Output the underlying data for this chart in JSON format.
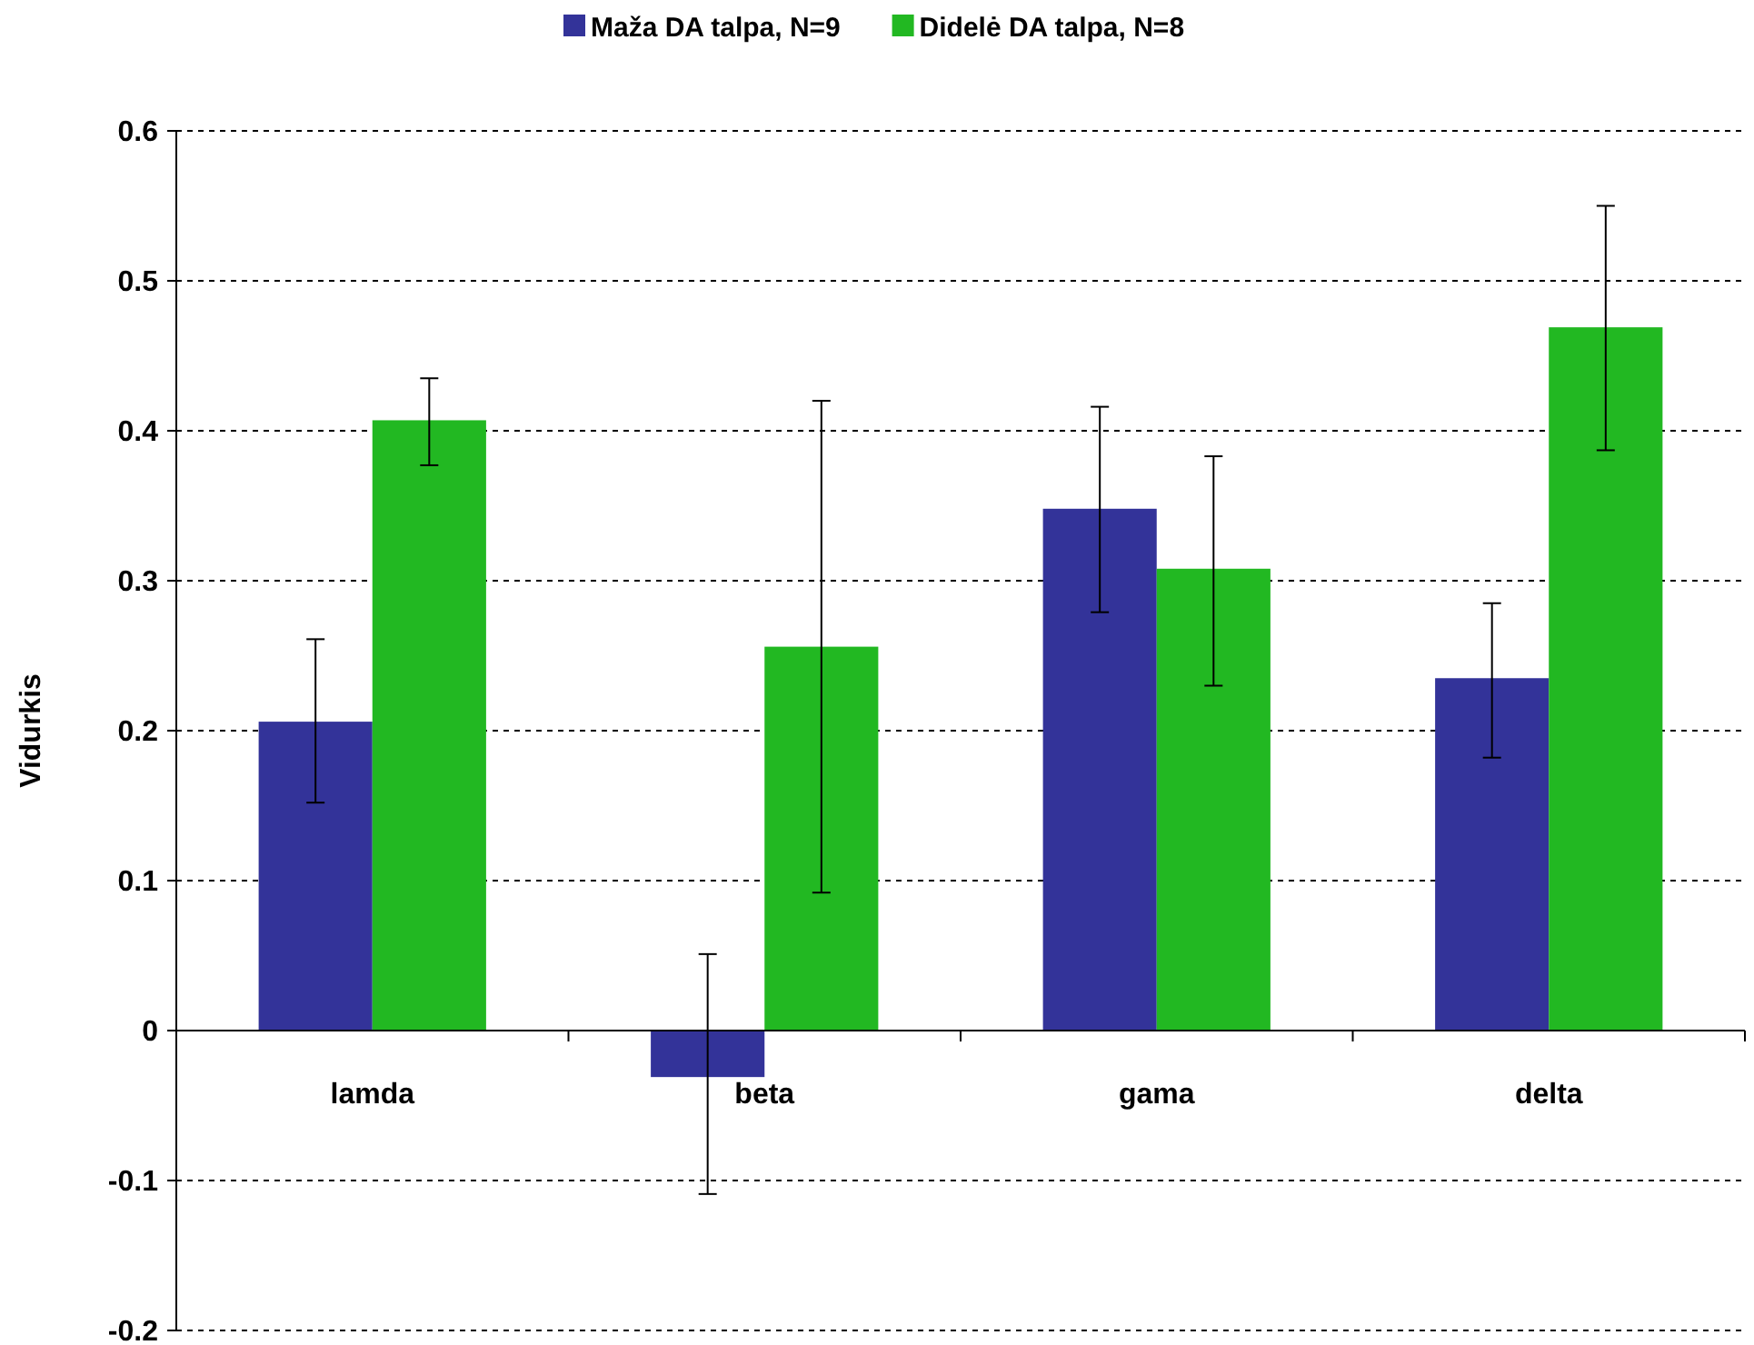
{
  "chart_data": {
    "type": "bar",
    "ylabel": "Vidurkis",
    "categories": [
      "lamda",
      "beta",
      "gama",
      "delta"
    ],
    "series": [
      {
        "name": "Maža DA talpa, N=9",
        "color": "#333399",
        "values": [
          0.206,
          -0.031,
          0.348,
          0.235
        ],
        "errors": [
          [
            0.152,
            0.261
          ],
          [
            -0.109,
            0.051
          ],
          [
            0.279,
            0.416
          ],
          [
            0.182,
            0.285
          ]
        ]
      },
      {
        "name": "Didelė DA talpa, N=8",
        "color": "#22b822",
        "values": [
          0.407,
          0.256,
          0.308,
          0.469
        ],
        "errors": [
          [
            0.377,
            0.435
          ],
          [
            0.092,
            0.42
          ],
          [
            0.23,
            0.383
          ],
          [
            0.387,
            0.55
          ]
        ]
      }
    ],
    "ylim": [
      -0.2,
      0.6
    ],
    "yticks": [
      -0.2,
      -0.1,
      0,
      0.1,
      0.2,
      0.3,
      0.4,
      0.5,
      0.6
    ],
    "grid": "y",
    "legend": "top",
    "line_style": "dotted"
  }
}
